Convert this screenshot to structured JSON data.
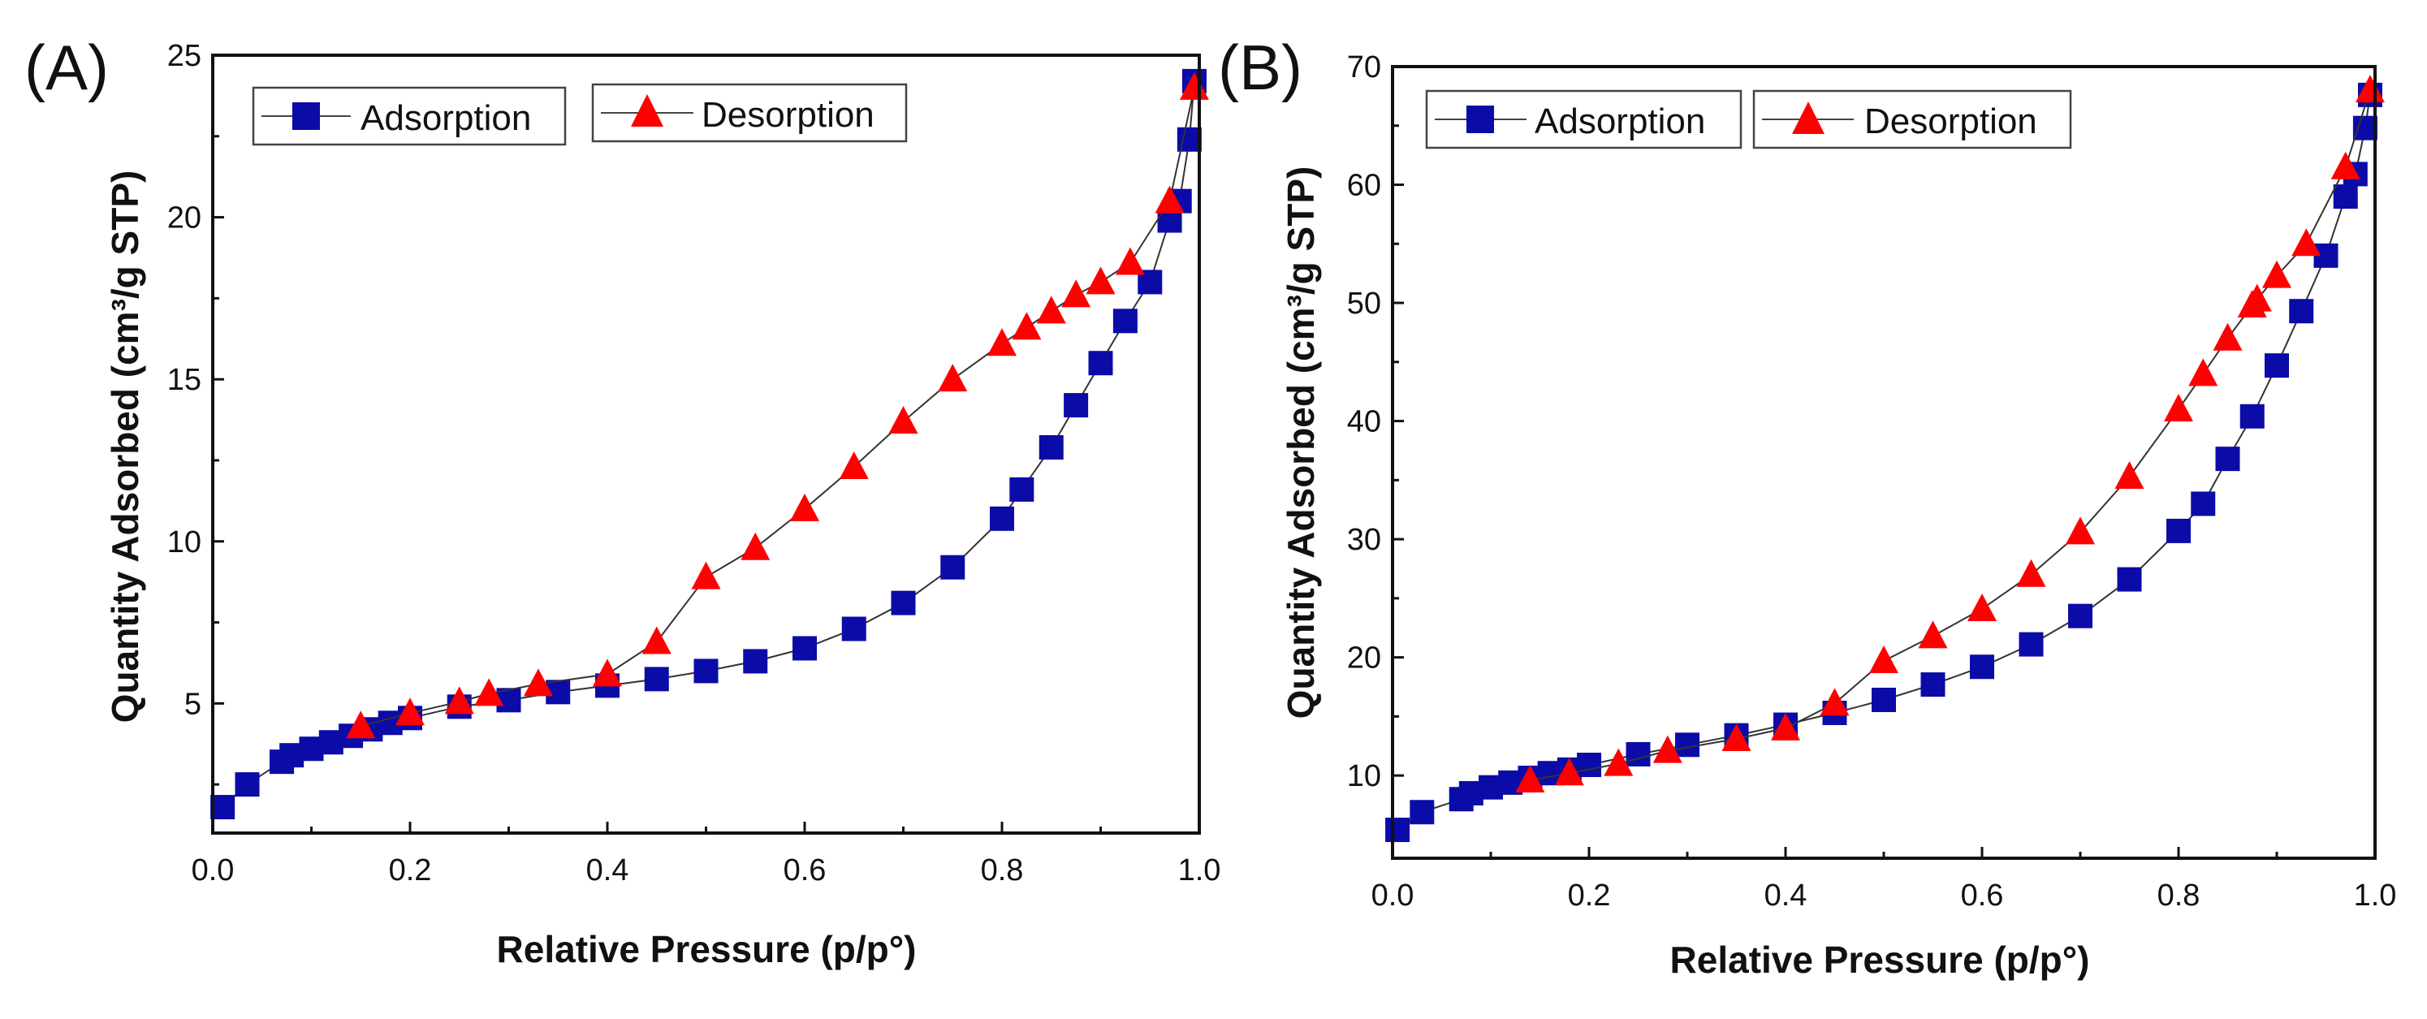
{
  "chart_data": [
    {
      "type": "scatter",
      "panel_label": "(A)",
      "xlabel": "Relative Pressure (p/p°)",
      "ylabel": "Quantity Adsorbed (cm³/g STP)",
      "xlim": [
        0.0,
        1.0
      ],
      "ylim": [
        1.0,
        25.0
      ],
      "x_ticks": [
        "0.0",
        "0.2",
        "0.4",
        "0.6",
        "0.8",
        "1.0"
      ],
      "y_ticks": [
        "5",
        "10",
        "15",
        "20",
        "25"
      ],
      "legend": [
        "Adsorption",
        "Desorption"
      ],
      "series": [
        {
          "name": "Adsorption",
          "marker": "square",
          "color": "#0b0ba8",
          "x": [
            0.01,
            0.035,
            0.07,
            0.08,
            0.1,
            0.12,
            0.14,
            0.16,
            0.18,
            0.2,
            0.25,
            0.3,
            0.35,
            0.4,
            0.45,
            0.5,
            0.55,
            0.6,
            0.65,
            0.7,
            0.75,
            0.8,
            0.82,
            0.85,
            0.875,
            0.9,
            0.925,
            0.95,
            0.97,
            0.98,
            0.99,
            0.995
          ],
          "y": [
            1.8,
            2.5,
            3.2,
            3.4,
            3.6,
            3.8,
            4.0,
            4.2,
            4.4,
            4.55,
            4.9,
            5.1,
            5.35,
            5.55,
            5.75,
            6.0,
            6.3,
            6.7,
            7.3,
            8.1,
            9.2,
            10.7,
            11.6,
            12.9,
            14.2,
            15.5,
            16.8,
            18.0,
            19.9,
            20.5,
            22.4,
            24.2
          ]
        },
        {
          "name": "Desorption",
          "marker": "triangle",
          "color": "#ff0000",
          "x": [
            0.995,
            0.97,
            0.93,
            0.9,
            0.875,
            0.85,
            0.825,
            0.8,
            0.75,
            0.7,
            0.65,
            0.6,
            0.55,
            0.5,
            0.45,
            0.4,
            0.33,
            0.28,
            0.25,
            0.2,
            0.15
          ],
          "y": [
            24.0,
            20.5,
            18.6,
            18.0,
            17.6,
            17.1,
            16.6,
            16.1,
            15.0,
            13.7,
            12.3,
            11.0,
            9.8,
            8.9,
            6.9,
            5.9,
            5.6,
            5.3,
            5.05,
            4.7,
            4.3
          ]
        }
      ]
    },
    {
      "type": "scatter",
      "panel_label": "(B)",
      "xlabel": "Relative Pressure (p/p°)",
      "ylabel": "Quantity Adsorbed (cm³/g STP)",
      "xlim": [
        0.0,
        1.0
      ],
      "ylim": [
        3.0,
        70.0
      ],
      "x_ticks": [
        "0.0",
        "0.2",
        "0.4",
        "0.6",
        "0.8",
        "1.0"
      ],
      "y_ticks": [
        "10",
        "20",
        "30",
        "40",
        "50",
        "60",
        "70"
      ],
      "legend": [
        "Adsorption",
        "Desorption"
      ],
      "series": [
        {
          "name": "Adsorption",
          "marker": "square",
          "color": "#0b0ba8",
          "x": [
            0.005,
            0.03,
            0.07,
            0.08,
            0.1,
            0.12,
            0.14,
            0.16,
            0.18,
            0.2,
            0.25,
            0.3,
            0.35,
            0.4,
            0.45,
            0.5,
            0.55,
            0.6,
            0.65,
            0.7,
            0.75,
            0.8,
            0.825,
            0.85,
            0.875,
            0.9,
            0.925,
            0.95,
            0.97,
            0.98,
            0.99,
            0.995
          ],
          "y": [
            5.4,
            6.9,
            8.0,
            8.5,
            9.0,
            9.4,
            9.8,
            10.2,
            10.5,
            10.9,
            11.8,
            12.6,
            13.4,
            14.3,
            15.3,
            16.4,
            17.7,
            19.2,
            21.1,
            23.5,
            26.6,
            30.7,
            33.0,
            36.8,
            40.4,
            44.7,
            49.3,
            54.0,
            59.0,
            60.9,
            64.8,
            67.6
          ]
        },
        {
          "name": "Desorption",
          "marker": "triangle",
          "color": "#ff0000",
          "x": [
            0.995,
            0.97,
            0.93,
            0.9,
            0.88,
            0.875,
            0.85,
            0.825,
            0.8,
            0.75,
            0.7,
            0.65,
            0.6,
            0.55,
            0.5,
            0.45,
            0.4,
            0.35,
            0.28,
            0.23,
            0.18,
            0.14
          ],
          "y": [
            68.0,
            61.5,
            55.0,
            52.3,
            50.3,
            49.8,
            47.0,
            44.0,
            41.0,
            35.3,
            30.6,
            27.0,
            24.1,
            21.8,
            19.7,
            16.1,
            14.0,
            13.1,
            12.1,
            11.0,
            10.2,
            9.6
          ]
        }
      ]
    }
  ]
}
